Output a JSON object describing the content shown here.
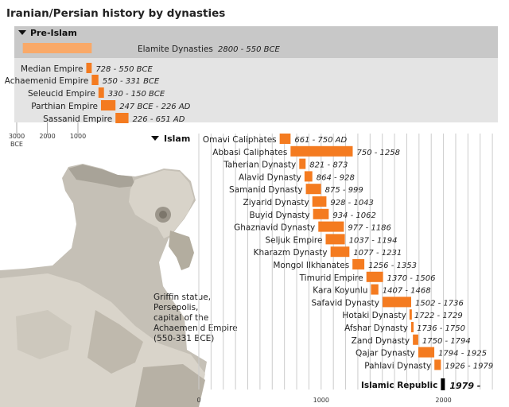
{
  "chart_data": {
    "type": "bar",
    "title": "Iranian/Persian history by dynasties",
    "sections": [
      {
        "name": "Pre-Islam",
        "axis_ticks": [
          {
            "value": -3000,
            "label": "3000",
            "sublabel": "BCE"
          },
          {
            "value": -2000,
            "label": "2000"
          },
          {
            "value": -1000,
            "label": "1000"
          }
        ],
        "series": [
          {
            "name": "Elamite Dynasties",
            "dates": "2800 - 550 BCE",
            "start": -2800,
            "end": -550
          },
          {
            "name": "Median Empire",
            "dates": "728 - 550 BCE",
            "start": -728,
            "end": -550
          },
          {
            "name": "Achaemenid Empire",
            "dates": "550 - 331 BCE",
            "start": -550,
            "end": -331
          },
          {
            "name": "Seleucid Empire",
            "dates": "330 - 150 BCE",
            "start": -330,
            "end": -150
          },
          {
            "name": "Parthian Empire",
            "dates": "247 BCE - 226 AD",
            "start": -247,
            "end": 226
          },
          {
            "name": "Sassanid Empire",
            "dates": "226 - 651 AD",
            "start": 226,
            "end": 651
          }
        ]
      },
      {
        "name": "Islam",
        "axis_ticks": [
          {
            "value": 0,
            "label": "0"
          },
          {
            "value": 1000,
            "label": "1000"
          },
          {
            "value": 2000,
            "label": "2000"
          }
        ],
        "series": [
          {
            "name": "Omavi Caliphates",
            "dates": "661 - 750 AD",
            "start": 661,
            "end": 750
          },
          {
            "name": "Abbasi Caliphates",
            "dates": "750 - 1258",
            "start": 750,
            "end": 1258
          },
          {
            "name": "Taherian Dynasty",
            "dates": "821 - 873",
            "start": 821,
            "end": 873
          },
          {
            "name": "Alavid Dynasty",
            "dates": "864 - 928",
            "start": 864,
            "end": 928
          },
          {
            "name": "Samanid Dynasty",
            "dates": "875 - 999",
            "start": 875,
            "end": 999
          },
          {
            "name": "Ziyarid Dynasty",
            "dates": "928 - 1043",
            "start": 928,
            "end": 1043
          },
          {
            "name": "Buyid Dynasty",
            "dates": "934 - 1062",
            "start": 934,
            "end": 1062
          },
          {
            "name": "Ghaznavid Dynasty",
            "dates": "977 - 1186",
            "start": 977,
            "end": 1186
          },
          {
            "name": "Seljuk Empire",
            "dates": "1037 - 1194",
            "start": 1037,
            "end": 1194
          },
          {
            "name": "Kharazm Dynasty",
            "dates": "1077 - 1231",
            "start": 1077,
            "end": 1231
          },
          {
            "name": "Mongol Ilkhanates",
            "dates": "1256 - 1353",
            "start": 1256,
            "end": 1353
          },
          {
            "name": "Timurid Empire",
            "dates": "1370 - 1506",
            "start": 1370,
            "end": 1506
          },
          {
            "name": "Kara Koyunlu",
            "dates": "1407 - 1468",
            "start": 1407,
            "end": 1468
          },
          {
            "name": "Safavid Dynasty",
            "dates": "1502 - 1736",
            "start": 1502,
            "end": 1736
          },
          {
            "name": "Hotaki Dynasty",
            "dates": "1722 - 1729",
            "start": 1722,
            "end": 1729
          },
          {
            "name": "Afshar Dynasty",
            "dates": "1736 - 1750",
            "start": 1736,
            "end": 1750
          },
          {
            "name": "Zand Dynasty",
            "dates": "1750 - 1794",
            "start": 1750,
            "end": 1794
          },
          {
            "name": "Qajar Dynasty",
            "dates": "1794 - 1925",
            "start": 1794,
            "end": 1925
          },
          {
            "name": "Pahlavi Dynasty",
            "dates": "1926 - 1979",
            "start": 1926,
            "end": 1979
          }
        ],
        "current": {
          "name": "Islamic Republic",
          "dates": "1979 -",
          "start": 1979
        }
      }
    ],
    "caption": [
      "Griffin statue,",
      "Persepolis,",
      "capital of the",
      "Achaemenid Empire",
      "(550-331 BCE)"
    ],
    "colors": {
      "bar": "#f47b20",
      "bar_light": "#f9a968",
      "band": "#e4e4e4",
      "header": "#c8c8c8",
      "grid": "#cccccc",
      "current": "#000000"
    }
  }
}
